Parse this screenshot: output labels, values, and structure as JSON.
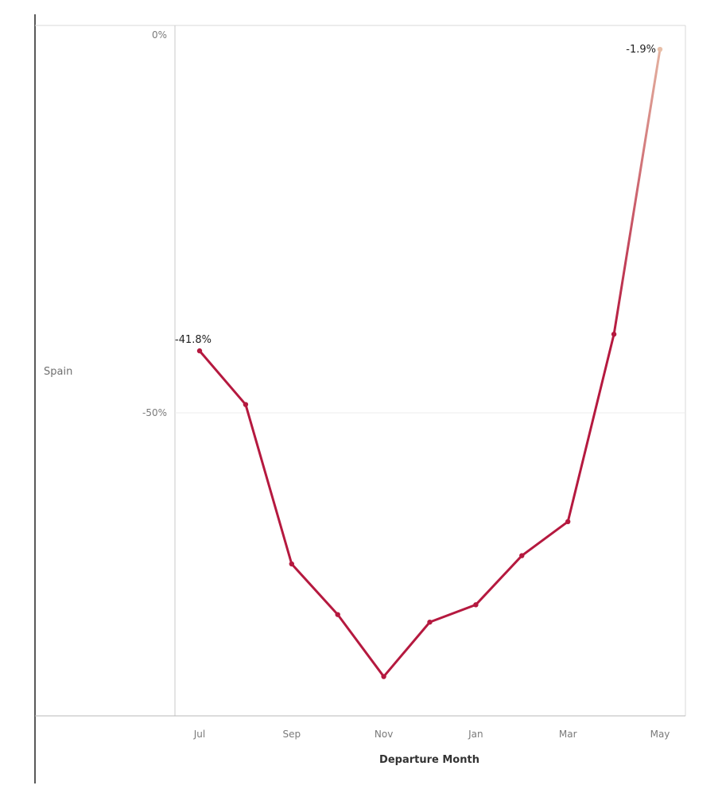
{
  "chart_data": {
    "type": "line",
    "row_label": "Spain",
    "xlabel": "Departure Month",
    "ylabel": "",
    "title": "",
    "ylim": [
      -90,
      0
    ],
    "y_ticks": [
      0,
      -50
    ],
    "y_tick_labels": [
      "0%",
      "-50%"
    ],
    "x_tick_labels": [
      "Jul",
      "Sep",
      "Nov",
      "Jan",
      "Mar",
      "May"
    ],
    "x_tick_index": [
      0,
      2,
      4,
      6,
      8,
      10
    ],
    "grid": true,
    "series": [
      {
        "x": [
          "Jul",
          "Aug",
          "Sep",
          "Oct",
          "Nov",
          "Dec",
          "Jan",
          "Feb",
          "Mar",
          "Apr",
          "May"
        ],
        "values": [
          -41.8,
          -48.9,
          -70.0,
          -76.7,
          -84.9,
          -77.7,
          -75.4,
          -68.9,
          -64.4,
          -39.6,
          -1.9
        ]
      }
    ],
    "data_labels": [
      {
        "index": 0,
        "text": "-41.8%"
      },
      {
        "index": 10,
        "text": "-1.9%"
      }
    ],
    "colors": {
      "line_main": "#b5193f",
      "line_end": "#e8bfa8",
      "axis": "#c8c8c8",
      "grid": "#ececec"
    }
  }
}
